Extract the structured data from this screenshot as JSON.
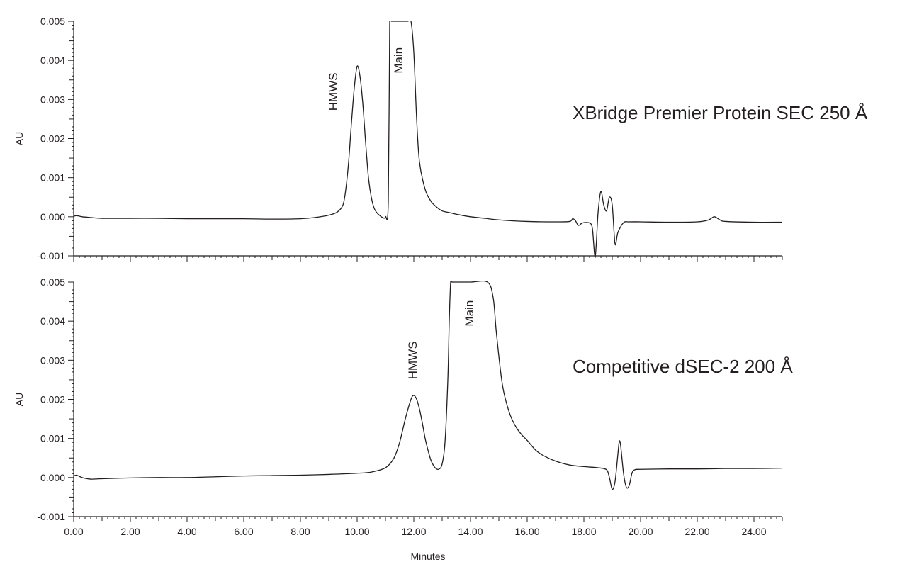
{
  "chart_data": [
    {
      "type": "line",
      "title": "XBridge Premier Protein SEC 250 Å",
      "xlabel": "",
      "ylabel": "AU",
      "xlim": [
        0,
        25
      ],
      "ylim": [
        -0.001,
        0.005
      ],
      "yticks": [
        "-0.001",
        "0.000",
        "0.001",
        "0.002",
        "0.003",
        "0.004",
        "0.005"
      ],
      "grid": false,
      "annotations": [
        {
          "text": "HMWS",
          "x": 9.3,
          "y": 0.0032,
          "rotation": -90
        },
        {
          "text": "Main",
          "x": 11.6,
          "y": 0.004,
          "rotation": -90
        }
      ],
      "series": [
        {
          "x": [
            0,
            0.1,
            0.3,
            0.6,
            1,
            2,
            3,
            4,
            5,
            6,
            7,
            8,
            8.5,
            9,
            9.3,
            9.5,
            9.6,
            9.7,
            9.8,
            9.9,
            10.0,
            10.1,
            10.2,
            10.3,
            10.4,
            10.5,
            10.6,
            10.7,
            10.8,
            10.9,
            11.0,
            11.1,
            11.15,
            11.2,
            11.3,
            11.4,
            11.5,
            11.6,
            11.7,
            11.8,
            11.9,
            12.0,
            12.1,
            12.2,
            12.4,
            12.6,
            12.8,
            13.0,
            13.3,
            13.6,
            14.0,
            14.5,
            15,
            16,
            17,
            17.5,
            17.6,
            17.7,
            17.8,
            17.9,
            18.0,
            18.2,
            18.3,
            18.4,
            18.5,
            18.6,
            18.7,
            18.8,
            18.9,
            19.0,
            19.1,
            19.2,
            19.4,
            19.6,
            20,
            21,
            22,
            22.4,
            22.6,
            22.8,
            23,
            24,
            25
          ],
          "y": [
            1e-05,
            3e-05,
            0.0,
            -2e-05,
            -4e-05,
            -4e-05,
            -4e-05,
            -5e-05,
            -5e-05,
            -5e-05,
            -6e-05,
            -5e-05,
            -2e-05,
            4e-05,
            0.00012,
            0.0003,
            0.0007,
            0.0014,
            0.0024,
            0.0033,
            0.00385,
            0.0036,
            0.0029,
            0.0019,
            0.001,
            0.0005,
            0.00022,
            0.0001,
            3e-05,
            -2e-05,
            0.0,
            0.0004,
            0.005,
            0.005,
            0.005,
            0.005,
            0.005,
            0.005,
            0.005,
            0.005,
            0.005,
            0.0042,
            0.0025,
            0.0014,
            0.0007,
            0.0004,
            0.00025,
            0.00015,
            0.0001,
            5e-05,
            0.0,
            -4e-05,
            -8e-05,
            -0.00012,
            -0.00013,
            -0.00012,
            -5e-05,
            -0.0001,
            -0.00022,
            -0.00018,
            -0.00015,
            -0.00016,
            -0.0003,
            -0.00102,
            0.0001,
            0.00065,
            0.0003,
            0.00015,
            0.0005,
            0.0003,
            -0.0007,
            -0.0004,
            -0.00015,
            -0.00013,
            -0.00013,
            -0.00014,
            -0.00013,
            -8e-05,
            0.0,
            -8e-05,
            -0.00012,
            -0.00014,
            -0.00014
          ]
        }
      ]
    },
    {
      "type": "line",
      "title": "Competitive dSEC-2 200 Å",
      "xlabel": "Minutes",
      "ylabel": "AU",
      "xlim": [
        0,
        25
      ],
      "ylim": [
        -0.001,
        0.005
      ],
      "xticks": [
        "0.00",
        "2.00",
        "4.00",
        "6.00",
        "8.00",
        "10.00",
        "12.00",
        "14.00",
        "16.00",
        "18.00",
        "20.00",
        "22.00",
        "24.00"
      ],
      "yticks": [
        "-0.001",
        "0.000",
        "0.001",
        "0.002",
        "0.003",
        "0.004",
        "0.005"
      ],
      "grid": false,
      "annotations": [
        {
          "text": "HMWS",
          "x": 12.1,
          "y": 0.003,
          "rotation": -90
        },
        {
          "text": "Main",
          "x": 14.1,
          "y": 0.0042,
          "rotation": -90
        }
      ],
      "series": [
        {
          "x": [
            0,
            0.1,
            0.3,
            0.6,
            1,
            2,
            3,
            4,
            5,
            6,
            7,
            8,
            9,
            10,
            10.5,
            11,
            11.3,
            11.5,
            11.7,
            11.9,
            12.0,
            12.1,
            12.2,
            12.3,
            12.4,
            12.5,
            12.6,
            12.7,
            12.8,
            12.9,
            13.0,
            13.1,
            13.2,
            13.25,
            13.3,
            13.35,
            13.4,
            14.0,
            14.6,
            14.8,
            14.9,
            15.0,
            15.1,
            15.2,
            15.4,
            15.6,
            15.8,
            16.0,
            16.3,
            16.6,
            17.0,
            17.5,
            18,
            18.5,
            18.8,
            18.9,
            19.0,
            19.1,
            19.2,
            19.25,
            19.3,
            19.4,
            19.5,
            19.6,
            19.7,
            19.8,
            20,
            21,
            22,
            23,
            24,
            25
          ],
          "y": [
            4e-05,
            6e-05,
            0.0,
            -4e-05,
            -3e-05,
            -1e-05,
            0.0,
            0.0,
            2e-05,
            4e-05,
            5e-05,
            6e-05,
            8e-05,
            0.00011,
            0.00014,
            0.00025,
            0.0005,
            0.0009,
            0.0015,
            0.002,
            0.0021,
            0.002,
            0.00175,
            0.0014,
            0.001,
            0.0007,
            0.00045,
            0.0003,
            0.00022,
            0.00022,
            0.00035,
            0.0009,
            0.0025,
            0.004,
            0.005,
            0.005,
            0.005,
            0.005,
            0.005,
            0.0046,
            0.0038,
            0.0031,
            0.0025,
            0.0021,
            0.0016,
            0.0013,
            0.0011,
            0.00095,
            0.0007,
            0.00055,
            0.00042,
            0.00032,
            0.00028,
            0.00025,
            0.0002,
            0.0,
            -0.0003,
            -0.0001,
            0.0006,
            0.00093,
            0.0008,
            0.0001,
            -0.00025,
            -0.0002,
            0.00012,
            0.0002,
            0.00021,
            0.00022,
            0.00022,
            0.00023,
            0.00023,
            0.00024
          ]
        }
      ]
    }
  ]
}
